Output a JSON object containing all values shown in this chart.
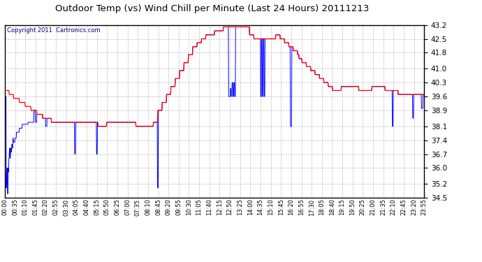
{
  "title": "Outdoor Temp (vs) Wind Chill per Minute (Last 24 Hours) 20111213",
  "copyright_text": "Copyright 2011  Cartronics.com",
  "background_color": "#ffffff",
  "plot_bg_color": "#ffffff",
  "grid_color": "#bbbbbb",
  "red_line_color": "#ff0000",
  "blue_line_color": "#0000ff",
  "title_color": "#000000",
  "ylim": [
    34.5,
    43.2
  ],
  "yticks": [
    34.5,
    35.2,
    36.0,
    36.7,
    37.4,
    38.1,
    38.9,
    39.6,
    40.3,
    41.0,
    41.8,
    42.5,
    43.2
  ],
  "xtick_labels": [
    "00:00",
    "00:35",
    "01:10",
    "01:45",
    "02:20",
    "02:55",
    "03:30",
    "04:05",
    "04:40",
    "05:15",
    "05:50",
    "06:25",
    "07:00",
    "07:35",
    "08:10",
    "08:45",
    "09:20",
    "09:55",
    "10:30",
    "11:05",
    "11:40",
    "12:15",
    "12:50",
    "13:25",
    "14:00",
    "14:35",
    "15:10",
    "15:45",
    "16:20",
    "16:55",
    "17:30",
    "18:05",
    "18:40",
    "19:15",
    "19:50",
    "20:25",
    "21:00",
    "21:35",
    "22:10",
    "22:45",
    "23:20",
    "23:55"
  ],
  "num_points": 1440,
  "copyright_color": "#000080"
}
